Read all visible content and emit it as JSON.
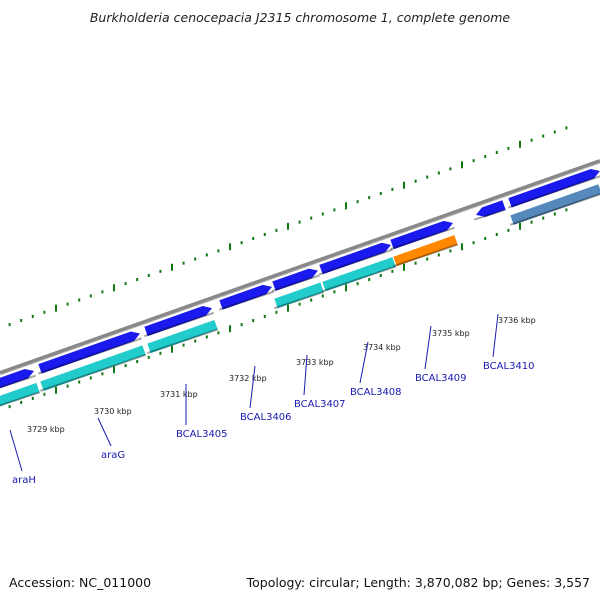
{
  "title": "Burkholderia cenocepacia J2315 chromosome 1, complete genome",
  "footer": {
    "accession": "Accession: NC_011000",
    "summary": "Topology: circular; Length: 3,870,082 bp; Genes: 3,557"
  },
  "colors": {
    "cds_forward": "#1a1aee",
    "cds_reverse": "#22cccc",
    "cds_highlight": "#ff8800",
    "cds_other": "#5588bb",
    "backbone": "#888888",
    "ticks": "#117711",
    "label": "#1a1ab0"
  },
  "tick_labels": [
    {
      "text": "3729 kbp",
      "kbp": 3729
    },
    {
      "text": "3730 kbp",
      "kbp": 3730
    },
    {
      "text": "3731 kbp",
      "kbp": 3731
    },
    {
      "text": "3732 kbp",
      "kbp": 3732
    },
    {
      "text": "3733 kbp",
      "kbp": 3733
    },
    {
      "text": "3734 kbp",
      "kbp": 3734
    },
    {
      "text": "3735 kbp",
      "kbp": 3735
    },
    {
      "text": "3736 kbp",
      "kbp": 3736
    }
  ],
  "gene_labels": [
    {
      "text": "araH"
    },
    {
      "text": "araG"
    },
    {
      "text": "BCAL3405"
    },
    {
      "text": "BCAL3406"
    },
    {
      "text": "BCAL3407"
    },
    {
      "text": "BCAL3408"
    },
    {
      "text": "BCAL3409"
    },
    {
      "text": "BCAL3410"
    }
  ]
}
